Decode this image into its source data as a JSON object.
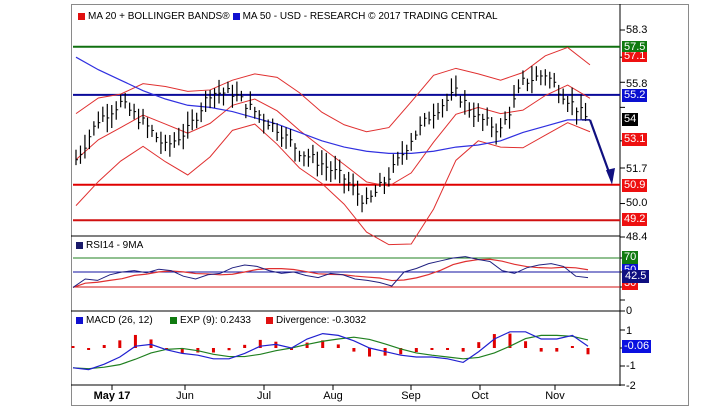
{
  "header": {
    "legend": [
      {
        "label": "MA 20 + BOLLINGER BANDS®",
        "color": "#e01010"
      },
      {
        "label": "MA 50 - USD - RESEARCH © 2017 TRADING CENTRAL",
        "color": "#1010d0"
      }
    ]
  },
  "colors": {
    "bollinger": "#e03030",
    "ma50": "#3030e0",
    "resistance_green": "#107010",
    "pivot_blue": "#0a0a9a",
    "support_red": "#e00000",
    "bars": "#000000",
    "rsi_line": "#202080",
    "rsi_ma": "#e03030",
    "macd_line": "#2020d0",
    "macd_signal": "#208020",
    "macd_hist": "#e00000",
    "arrow": "#101080"
  },
  "price_panel": {
    "y_ticks": [
      "58.3",
      "55.8",
      "51.7",
      "50.0",
      "48.4"
    ],
    "tags": [
      {
        "value": "57.5",
        "color": "#107a10"
      },
      {
        "value": "57.1",
        "color": "#ee1010"
      },
      {
        "value": "55.2",
        "color": "#0a10d0"
      },
      {
        "value": "54",
        "color": "#000000"
      },
      {
        "value": "53.1",
        "color": "#ee1010"
      },
      {
        "value": "50.9",
        "color": "#ee1010"
      },
      {
        "value": "49.2",
        "color": "#ee1010"
      }
    ]
  },
  "rsi_panel": {
    "legend": "RSI14 - 9MA",
    "legend_color": "#1a1a6a",
    "tags": [
      {
        "value": "70",
        "color": "#107a10"
      },
      {
        "value": "50",
        "color": "#0a10d0"
      },
      {
        "value": "42.5",
        "color": "#101080"
      },
      {
        "value": "30",
        "color": "#ee1010"
      }
    ]
  },
  "macd_panel": {
    "legend": [
      {
        "label": "MACD (26, 12)",
        "color": "#1010d0"
      },
      {
        "label": "EXP (9): 0.2433",
        "color": "#107a10"
      },
      {
        "label": "Divergence: -0.3032",
        "color": "#e01010"
      }
    ],
    "y_ticks": [
      "0",
      "1",
      "-1",
      "-2"
    ],
    "tags": [
      {
        "value": "-0.06",
        "color": "#0a10e0"
      }
    ]
  },
  "x_axis": {
    "labels": [
      {
        "label": "May 17",
        "bold": true
      },
      {
        "label": "Jun",
        "bold": false
      },
      {
        "label": "Jul",
        "bold": false
      },
      {
        "label": "Aug",
        "bold": false
      },
      {
        "label": "Sep",
        "bold": false
      },
      {
        "label": "Oct",
        "bold": false
      },
      {
        "label": "Nov",
        "bold": false
      }
    ]
  },
  "chart_data": [
    {
      "type": "line",
      "title": "USD - MA 20 + Bollinger Bands / MA 50 (price, OHLC bars)",
      "x": [
        "May 17",
        "Jun",
        "Jul",
        "Aug",
        "Sep",
        "Oct",
        "Nov"
      ],
      "ylim": [
        48.4,
        58.3
      ],
      "y_ticks": [
        58.3,
        55.8,
        51.7,
        50.0,
        48.4
      ],
      "horizontal_levels": [
        {
          "name": "resistance 2",
          "value": 57.5,
          "color": "green"
        },
        {
          "name": "pivot",
          "value": 55.2,
          "color": "blue"
        },
        {
          "name": "support 1",
          "value": 50.9,
          "color": "red"
        },
        {
          "name": "support 2",
          "value": 49.2,
          "color": "red"
        }
      ],
      "last_values": {
        "price": 54,
        "bollinger_upper": 57.1,
        "bollinger_lower": 53.1
      },
      "series": [
        {
          "name": "Close (approx.)",
          "values": [
            52.1,
            54.0,
            54.8,
            53.9,
            52.7,
            53.5,
            55.3,
            55.3,
            54.4,
            53.6,
            52.5,
            51.9,
            51.2,
            50.0,
            51.3,
            53.1,
            54.4,
            55.3,
            54.1,
            53.5,
            55.8,
            56.2,
            55.0,
            53.9
          ]
        },
        {
          "name": "MA 50 (approx.)",
          "values": [
            57.0,
            56.4,
            55.9,
            55.4,
            55.0,
            54.7,
            54.6,
            54.4,
            54.1,
            53.8,
            53.4,
            53.0,
            52.7,
            52.5,
            52.4,
            52.4,
            52.5,
            52.7,
            52.8,
            53.0,
            53.4,
            53.7,
            54.0,
            54.0
          ]
        }
      ],
      "annotation": "Projected arrow from 54 down to 50.9"
    },
    {
      "type": "line",
      "title": "RSI14 - 9MA",
      "ylim": [
        10,
        90
      ],
      "levels": [
        70,
        50,
        30
      ],
      "last_value": 42.5
    },
    {
      "type": "bar",
      "title": "MACD (26, 12)",
      "series": [
        {
          "name": "MACD (26, 12)"
        },
        {
          "name": "EXP (9)",
          "last_value": 0.2433
        },
        {
          "name": "Divergence",
          "last_value": -0.3032
        }
      ],
      "ylim": [
        -2,
        1
      ],
      "y_ticks": [
        1,
        0,
        -1,
        -2
      ],
      "last_value": -0.06
    }
  ]
}
